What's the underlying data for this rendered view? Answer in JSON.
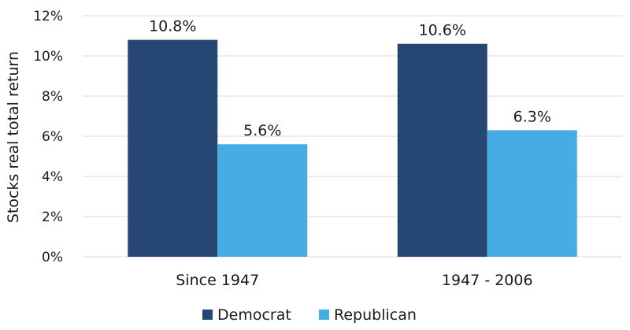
{
  "chart_data": {
    "type": "bar",
    "title": "",
    "xlabel": "",
    "ylabel": "Stocks real total return",
    "categories": [
      "Since 1947",
      "1947 - 2006"
    ],
    "series": [
      {
        "name": "Democrat",
        "color": "#264773",
        "values": [
          10.8,
          10.6
        ],
        "labels": [
          "10.8%",
          "10.6%"
        ]
      },
      {
        "name": "Republican",
        "color": "#45ADE3",
        "values": [
          5.6,
          6.3
        ],
        "labels": [
          "5.6%",
          "6.3%"
        ]
      }
    ],
    "ylim": [
      0,
      12
    ],
    "yticks": [
      0,
      2,
      4,
      6,
      8,
      10,
      12
    ],
    "ytick_labels": [
      "0%",
      "2%",
      "4%",
      "6%",
      "8%",
      "10%",
      "12%"
    ],
    "grid": true,
    "legend_position": "bottom"
  }
}
